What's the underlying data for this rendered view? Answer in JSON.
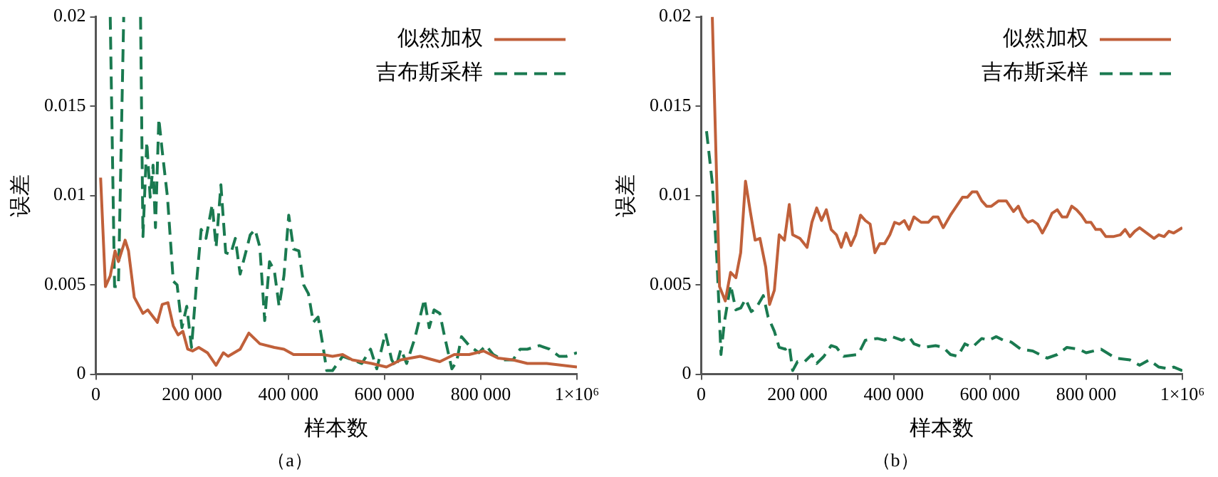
{
  "chart_data": [
    {
      "type": "line",
      "title": "（a）",
      "xlabel": "样本数",
      "ylabel": "误差",
      "xlim": [
        0,
        1000000
      ],
      "ylim": [
        0,
        0.02
      ],
      "grid": false,
      "legend": "top right",
      "marker": "none",
      "xticks": [
        0,
        {
          "value": 200000,
          "label": "200 000"
        },
        {
          "value": 400000,
          "label": "400 000"
        },
        {
          "value": 600000,
          "label": "600 000"
        },
        {
          "value": 800000,
          "label": "800 000"
        },
        {
          "value": 1000000,
          "label": "1×10⁶"
        }
      ],
      "yticks": [
        0,
        0.005,
        0.01,
        0.015,
        0.02
      ],
      "series": [
        {
          "name": "似然加权",
          "color": "#c0603a",
          "line_style": "solid",
          "x": [
            10000,
            20000,
            30000,
            40000,
            47000,
            61000,
            68000,
            80000,
            98000,
            108000,
            128000,
            138000,
            150000,
            161000,
            171000,
            181000,
            191000,
            201000,
            214000,
            232000,
            250000,
            265000,
            275000,
            300000,
            318000,
            341000,
            371000,
            391000,
            411000,
            442000,
            472000,
            492000,
            513000,
            533000,
            573000,
            604000,
            634000,
            674000,
            715000,
            745000,
            776000,
            806000,
            836000,
            867000,
            897000,
            937000,
            1000000
          ],
          "values": [
            0.011,
            0.0049,
            0.0055,
            0.0069,
            0.0063,
            0.0075,
            0.0069,
            0.0043,
            0.0034,
            0.0036,
            0.0029,
            0.0039,
            0.004,
            0.0027,
            0.0022,
            0.0024,
            0.0014,
            0.0013,
            0.0015,
            0.0012,
            0.0005,
            0.0012,
            0.001,
            0.0014,
            0.0023,
            0.0017,
            0.0015,
            0.0014,
            0.0011,
            0.0011,
            0.0011,
            0.001,
            0.0011,
            0.0008,
            0.0006,
            0.0004,
            0.0008,
            0.001,
            0.0007,
            0.0011,
            0.0011,
            0.0013,
            0.0009,
            0.0008,
            0.0006,
            0.0006,
            0.0004
          ]
        },
        {
          "name": "吉布斯采样",
          "color": "#1a7a50",
          "line_style": "dashed",
          "x": [
            30000,
            39000,
            47000,
            58000,
            75000,
            93000,
            98000,
            106000,
            113000,
            119000,
            124000,
            131000,
            138000,
            149000,
            161000,
            169000,
            179000,
            189000,
            199000,
            209000,
            219000,
            229000,
            242000,
            250000,
            260000,
            270000,
            280000,
            290000,
            300000,
            321000,
            331000,
            341000,
            351000,
            361000,
            371000,
            381000,
            391000,
            401000,
            411000,
            422000,
            432000,
            442000,
            452000,
            462000,
            472000,
            480000,
            492000,
            513000,
            533000,
            553000,
            571000,
            584000,
            602000,
            615000,
            624000,
            634000,
            646000,
            663000,
            683000,
            693000,
            703000,
            715000,
            725000,
            740000,
            750000,
            760000,
            776000,
            796000,
            811000,
            826000,
            846000,
            867000,
            882000,
            897000,
            922000,
            943000,
            963000,
            978000,
            1000000
          ],
          "values": [
            0.02,
            0.0049,
            0.0049,
            0.02,
            null,
            0.02,
            0.0077,
            0.013,
            0.0099,
            0.0117,
            0.0082,
            0.0143,
            0.0125,
            0.0099,
            0.0052,
            0.005,
            0.0026,
            0.0038,
            0.0015,
            0.005,
            0.0081,
            0.0076,
            0.0095,
            0.0071,
            0.0106,
            0.0068,
            0.0067,
            0.0076,
            0.0056,
            0.0078,
            0.0081,
            0.0071,
            0.003,
            0.0063,
            0.0058,
            0.0038,
            0.0055,
            0.0089,
            0.007,
            0.0069,
            0.005,
            0.0045,
            0.0029,
            0.0032,
            0.0016,
            0.0002,
            0.0002,
            0.001,
            0.0008,
            0.0006,
            0.0014,
            0.0003,
            0.0023,
            0.0008,
            0.0004,
            0.0014,
            0.0006,
            0.002,
            0.0042,
            0.0026,
            0.0036,
            0.0034,
            0.0021,
            0.0003,
            0.0007,
            0.0021,
            0.0016,
            0.0012,
            0.0016,
            0.0011,
            0.0008,
            0.0008,
            0.0014,
            0.0014,
            0.0016,
            0.0014,
            0.001,
            0.001,
            0.0012
          ]
        }
      ]
    },
    {
      "type": "line",
      "title": "（b）",
      "xlabel": "样本数",
      "ylabel": "误差",
      "xlim": [
        0,
        1000000
      ],
      "ylim": [
        0,
        0.02
      ],
      "grid": false,
      "legend": "top right",
      "marker": "none",
      "xticks": [
        0,
        {
          "value": 200000,
          "label": "200 000"
        },
        {
          "value": 400000,
          "label": "400 000"
        },
        {
          "value": 600000,
          "label": "600 000"
        },
        {
          "value": 800000,
          "label": "800 000"
        },
        {
          "value": 1000000,
          "label": "1×10⁶"
        }
      ],
      "yticks": [
        0,
        0.005,
        0.01,
        0.015,
        0.02
      ],
      "series": [
        {
          "name": "似然加权",
          "color": "#c0603a",
          "line_style": "solid",
          "x": [
            23000,
            38000,
            50000,
            61000,
            72000,
            82000,
            92000,
            102000,
            112000,
            122000,
            134000,
            142000,
            152000,
            162000,
            173000,
            183000,
            190000,
            205000,
            220000,
            230000,
            240000,
            250000,
            260000,
            270000,
            281000,
            291000,
            301000,
            311000,
            321000,
            331000,
            341000,
            351000,
            361000,
            371000,
            381000,
            392000,
            402000,
            412000,
            422000,
            432000,
            442000,
            457000,
            472000,
            482000,
            492000,
            503000,
            518000,
            528000,
            543000,
            553000,
            563000,
            573000,
            583000,
            593000,
            603000,
            618000,
            634000,
            649000,
            659000,
            669000,
            679000,
            689000,
            699000,
            709000,
            719000,
            729000,
            740000,
            750000,
            760000,
            770000,
            780000,
            790000,
            800000,
            810000,
            820000,
            830000,
            841000,
            856000,
            871000,
            881000,
            891000,
            901000,
            911000,
            921000,
            931000,
            941000,
            951000,
            962000,
            972000,
            982000,
            1000000
          ],
          "values": [
            0.02,
            0.0049,
            0.0041,
            0.0057,
            0.0054,
            0.0068,
            0.0108,
            0.0091,
            0.0075,
            0.0076,
            0.006,
            0.0039,
            0.0047,
            0.0078,
            0.0075,
            0.0095,
            0.0078,
            0.0076,
            0.0071,
            0.0085,
            0.0093,
            0.0086,
            0.0092,
            0.0081,
            0.0078,
            0.0071,
            0.0079,
            0.0072,
            0.0078,
            0.0089,
            0.0086,
            0.0084,
            0.0068,
            0.0073,
            0.0073,
            0.0078,
            0.0085,
            0.0084,
            0.0086,
            0.0081,
            0.0088,
            0.0085,
            0.0085,
            0.0088,
            0.0088,
            0.0082,
            0.0089,
            0.0093,
            0.0099,
            0.0099,
            0.0102,
            0.0102,
            0.0097,
            0.0094,
            0.0094,
            0.0097,
            0.0097,
            0.0091,
            0.0094,
            0.0088,
            0.0085,
            0.0086,
            0.0084,
            0.0079,
            0.0084,
            0.009,
            0.0092,
            0.0088,
            0.0088,
            0.0094,
            0.0092,
            0.0089,
            0.0085,
            0.0085,
            0.0081,
            0.0081,
            0.0077,
            0.0077,
            0.0078,
            0.0081,
            0.0077,
            0.008,
            0.0082,
            0.008,
            0.0078,
            0.0076,
            0.0078,
            0.0077,
            0.008,
            0.0079,
            0.0082
          ]
        },
        {
          "name": "吉布斯采样",
          "color": "#1a7a50",
          "line_style": "dashed",
          "x": [
            11000,
            23000,
            33000,
            41000,
            48000,
            61000,
            72000,
            82000,
            92000,
            104000,
            114000,
            129000,
            139000,
            152000,
            162000,
            175000,
            183000,
            190000,
            200000,
            215000,
            230000,
            240000,
            255000,
            270000,
            281000,
            296000,
            326000,
            341000,
            366000,
            381000,
            397000,
            417000,
            432000,
            442000,
            462000,
            487000,
            503000,
            518000,
            533000,
            548000,
            563000,
            583000,
            598000,
            613000,
            628000,
            644000,
            664000,
            689000,
            719000,
            740000,
            760000,
            785000,
            800000,
            831000,
            861000,
            891000,
            911000,
            931000,
            951000,
            972000,
            982000,
            1000000
          ],
          "values": [
            0.0136,
            0.0107,
            0.0062,
            0.0011,
            0.0029,
            0.005,
            0.0036,
            0.0037,
            0.0042,
            0.0035,
            0.0037,
            0.0044,
            0.0032,
            0.0024,
            0.0015,
            0.0014,
            0.0016,
            0.0002,
            0.0007,
            0.0007,
            0.0011,
            0.0006,
            0.001,
            0.0016,
            0.0015,
            0.001,
            0.0011,
            0.0019,
            0.002,
            0.0019,
            0.0021,
            0.0019,
            0.0021,
            0.0017,
            0.0015,
            0.0016,
            0.0015,
            0.0011,
            0.001,
            0.0017,
            0.0015,
            0.002,
            0.0019,
            0.0021,
            0.0019,
            0.0018,
            0.0014,
            0.0013,
            0.0009,
            0.0011,
            0.0015,
            0.0014,
            0.0012,
            0.0014,
            0.0009,
            0.0008,
            0.0005,
            0.0008,
            0.0004,
            0.0003,
            0.0004,
            0.0002
          ]
        }
      ]
    }
  ]
}
